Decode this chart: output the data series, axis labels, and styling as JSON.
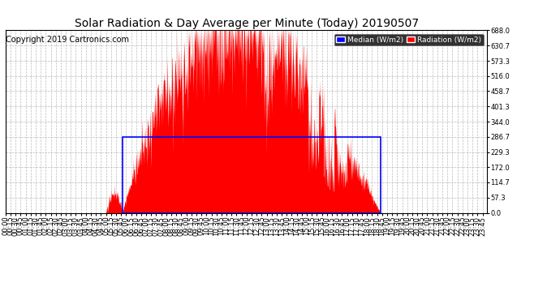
{
  "title": "Solar Radiation & Day Average per Minute (Today) 20190507",
  "copyright": "Copyright 2019 Cartronics.com",
  "ytick_values": [
    0.0,
    57.3,
    114.7,
    172.0,
    229.3,
    286.7,
    344.0,
    401.3,
    458.7,
    516.0,
    573.3,
    630.7,
    688.0
  ],
  "ymax": 688.0,
  "ymin": 0.0,
  "median_value": 286.7,
  "sunrise_min": 350,
  "sunset_min": 1120,
  "background_color": "#ffffff",
  "radiation_color": "#ff0000",
  "median_box_color": "#0000ff",
  "grid_color": "#aaaaaa",
  "title_color": "#000000",
  "title_fontsize": 10,
  "copyright_fontsize": 7,
  "tick_fontsize": 6,
  "legend_median_color": "#0000ff",
  "legend_radiation_color": "#ff0000",
  "num_minutes": 1440
}
